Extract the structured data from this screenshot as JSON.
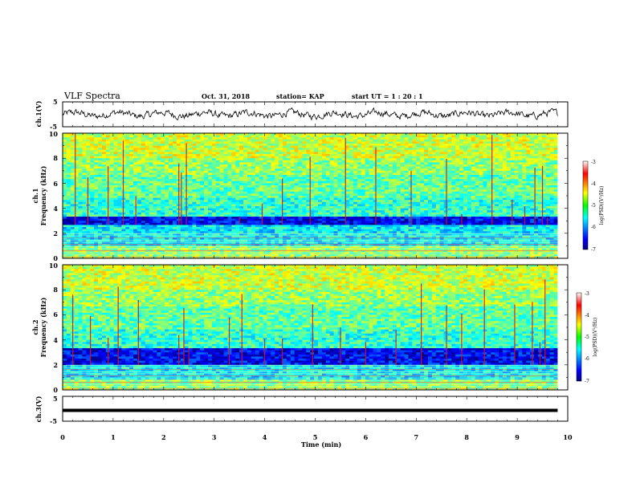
{
  "header": {
    "title": "VLF Spectra",
    "date": "Oct. 31, 2018",
    "station": "station= KAP",
    "start": "start  UT  =   1  : 20 : 1"
  },
  "chart_data": [
    {
      "type": "line",
      "panel": "ch1-waveform",
      "ylabel": "ch.1(V)",
      "x_range": [
        0,
        10
      ],
      "x_end": 9.8,
      "ylim": [
        -5,
        5
      ],
      "yticks": [
        "5",
        "-5"
      ],
      "trace": "noisy waveform, mostly between -1.5 and 1.5 V",
      "color": "#000000"
    },
    {
      "type": "heatmap",
      "panel": "ch1-spectrogram",
      "ylabel": "ch.1\nFrequency (kHz)",
      "y_label_lines": [
        "ch.1",
        "Frequency (kHz)"
      ],
      "ylim": [
        0,
        10
      ],
      "yticks": [
        "0",
        "2",
        "4",
        "6",
        "8",
        "10"
      ],
      "x_range": [
        0,
        10
      ],
      "x_end": 9.8,
      "color_scale": "jet",
      "colorbar": {
        "label": "log(PSD)(V²/Hz)",
        "ticks": [
          "-3",
          "-4",
          "-5",
          "-6",
          "-7"
        ],
        "range": [
          -7,
          -3
        ]
      },
      "bands_khz": {
        "low_noise": [
          0,
          1.0
        ],
        "mid_low": [
          1.0,
          2.7
        ],
        "dark_blue": [
          2.7,
          3.4
        ],
        "upper": [
          3.4,
          10
        ]
      },
      "vertical_spikes_min": [
        0.25,
        0.5,
        0.9,
        1.2,
        1.45,
        2.3,
        2.35,
        2.45,
        3.5,
        3.95,
        4.35,
        4.9,
        5.6,
        6.2,
        6.9,
        7.6,
        7.9,
        8.5,
        8.9,
        9.15,
        9.35,
        9.5,
        9.6
      ]
    },
    {
      "type": "heatmap",
      "panel": "ch2-spectrogram",
      "ylabel": "ch.2\nFrequency (kHz)",
      "y_label_lines": [
        "ch.2",
        "Frequency (kHz)"
      ],
      "ylim": [
        0,
        10
      ],
      "yticks": [
        "0",
        "2",
        "4",
        "6",
        "8",
        "10"
      ],
      "x_range": [
        0,
        10
      ],
      "x_end": 9.8,
      "color_scale": "jet",
      "colorbar": {
        "label": "log(PSD)(V²/Hz)",
        "ticks": [
          "-3",
          "-4",
          "-5",
          "-6",
          "-7"
        ],
        "range": [
          -7,
          -3
        ]
      },
      "bands_khz": {
        "low_noise": [
          0,
          0.8
        ],
        "mid_low": [
          0.8,
          2.0
        ],
        "dark_blue": [
          2.0,
          3.3
        ],
        "upper": [
          3.3,
          10
        ]
      },
      "vertical_spikes_min": [
        0.2,
        0.55,
        0.9,
        1.1,
        1.5,
        2.3,
        2.4,
        2.5,
        3.3,
        3.55,
        4.0,
        4.35,
        4.95,
        5.5,
        6.0,
        6.6,
        7.1,
        7.6,
        7.9,
        8.35,
        8.95,
        9.3,
        9.45,
        9.55
      ]
    },
    {
      "type": "line",
      "panel": "ch3-waveform",
      "ylabel": "ch.3(V)",
      "ylim": [
        -5,
        5
      ],
      "yticks": [
        "5",
        "-5"
      ],
      "x_range": [
        0,
        10
      ],
      "x_end": 9.8,
      "value": 0,
      "color": "#000000"
    }
  ],
  "x_axis": {
    "label": "Time  (min)",
    "ticks": [
      "0",
      "1",
      "2",
      "3",
      "4",
      "5",
      "6",
      "7",
      "8",
      "9",
      "10"
    ]
  }
}
